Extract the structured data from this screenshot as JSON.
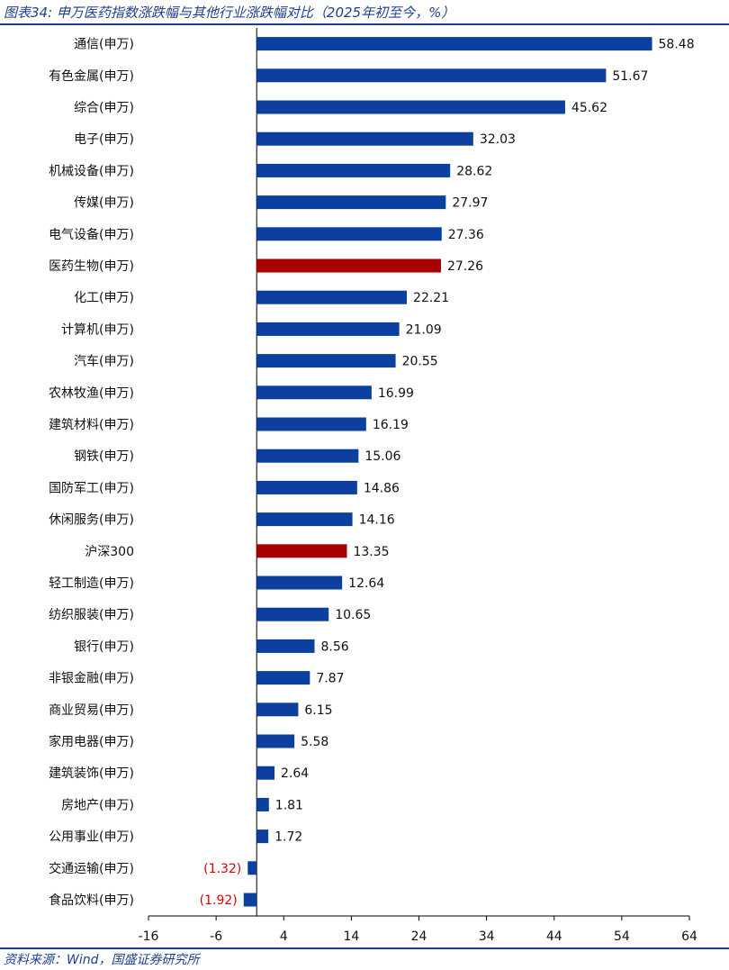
{
  "header": {
    "title": "图表34:  申万医药指数涨跌幅与其他行业涨跌幅对比（2025年初至今，%）"
  },
  "footer": {
    "source": "资料来源：Wind，国盛证券研究所"
  },
  "colors": {
    "bar_default": "#0b3fa0",
    "bar_highlight": "#a80000",
    "negative_label": "#e00000",
    "accent_rule": "#1f3f8f"
  },
  "chart_data": {
    "type": "bar",
    "orientation": "horizontal",
    "title": "",
    "xlabel": "",
    "ylabel": "",
    "xlim": [
      -16,
      64
    ],
    "xticks": [
      -16,
      -6,
      4,
      14,
      24,
      34,
      44,
      54,
      64
    ],
    "grid": false,
    "legend": "none",
    "highlighted": [
      "医药生物(申万)",
      "沪深300"
    ],
    "categories": [
      "通信(申万)",
      "有色金属(申万)",
      "综合(申万)",
      "电子(申万)",
      "机械设备(申万)",
      "传媒(申万)",
      "电气设备(申万)",
      "医药生物(申万)",
      "化工(申万)",
      "计算机(申万)",
      "汽车(申万)",
      "农林牧渔(申万)",
      "建筑材料(申万)",
      "钢铁(申万)",
      "国防军工(申万)",
      "休闲服务(申万)",
      "沪深300",
      "轻工制造(申万)",
      "纺织服装(申万)",
      "银行(申万)",
      "非银金融(申万)",
      "商业贸易(申万)",
      "家用电器(申万)",
      "建筑装饰(申万)",
      "房地产(申万)",
      "公用事业(申万)",
      "交通运输(申万)",
      "食品饮料(申万)"
    ],
    "values": [
      58.48,
      51.67,
      45.62,
      32.03,
      28.62,
      27.97,
      27.36,
      27.26,
      22.21,
      21.09,
      20.55,
      16.99,
      16.19,
      15.06,
      14.86,
      14.16,
      13.35,
      12.64,
      10.65,
      8.56,
      7.87,
      6.15,
      5.58,
      2.64,
      1.81,
      1.72,
      -1.32,
      -1.92
    ],
    "value_labels": [
      "58.48",
      "51.67",
      "45.62",
      "32.03",
      "28.62",
      "27.97",
      "27.36",
      "27.26",
      "22.21",
      "21.09",
      "20.55",
      "16.99",
      "16.19",
      "15.06",
      "14.86",
      "14.16",
      "13.35",
      "12.64",
      "10.65",
      "8.56",
      "7.87",
      "6.15",
      "5.58",
      "2.64",
      "1.81",
      "1.72",
      "(1.32)",
      "(1.92)"
    ]
  }
}
